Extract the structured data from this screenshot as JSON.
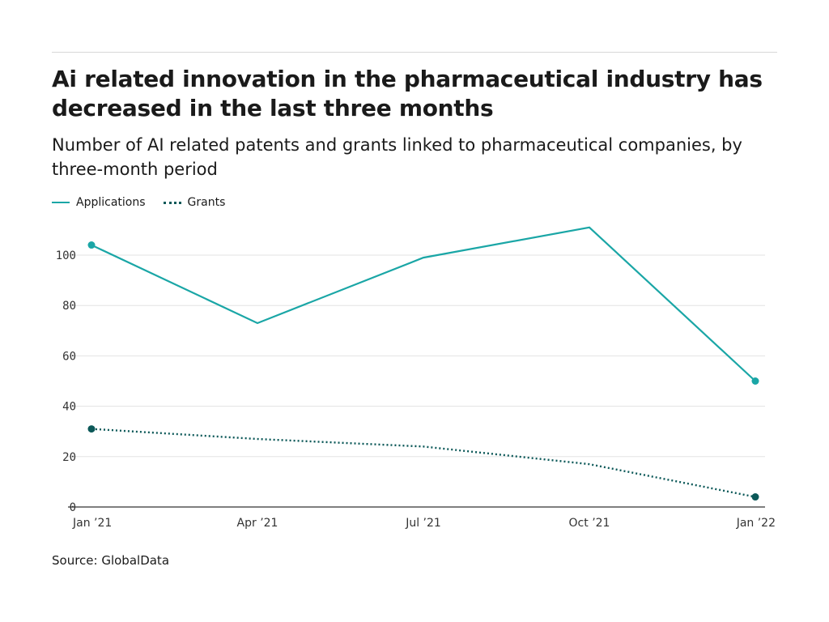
{
  "chart_data": {
    "type": "line",
    "title": "Ai related innovation in the pharmaceutical industry has decreased in the last three months",
    "subtitle": "Number of AI related patents and grants linked to pharmaceutical companies, by three-month period",
    "x": [
      "Jan ’21",
      "Apr ’21",
      "Jul ’21",
      "Oct ’21",
      "Jan ’22"
    ],
    "series": [
      {
        "name": "Applications",
        "values": [
          104,
          73,
          99,
          111,
          50
        ],
        "color": "#1aa6a6",
        "style": "solid"
      },
      {
        "name": "Grants",
        "values": [
          31,
          27,
          24,
          17,
          4
        ],
        "color": "#0b5858",
        "style": "dotted"
      }
    ],
    "yticks": [
      0,
      20,
      40,
      60,
      80,
      100
    ],
    "ylim": [
      0,
      115
    ],
    "grid": true,
    "legend": "top-left",
    "source": "Source: GlobalData"
  }
}
